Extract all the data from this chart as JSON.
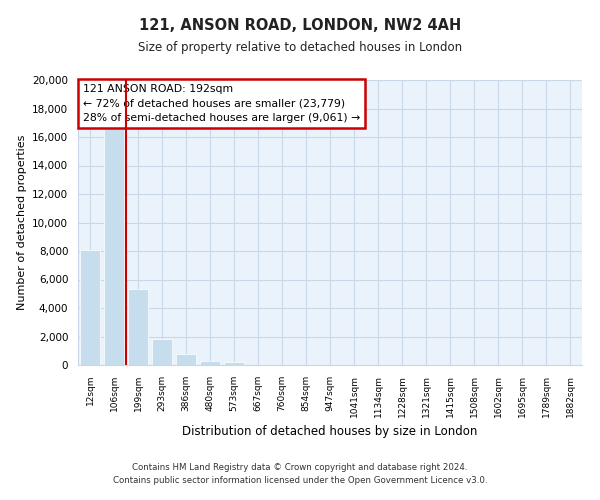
{
  "title": "121, ANSON ROAD, LONDON, NW2 4AH",
  "subtitle": "Size of property relative to detached houses in London",
  "xlabel": "Distribution of detached houses by size in London",
  "ylabel": "Number of detached properties",
  "bar_labels": [
    "12sqm",
    "106sqm",
    "199sqm",
    "293sqm",
    "386sqm",
    "480sqm",
    "573sqm",
    "667sqm",
    "760sqm",
    "854sqm",
    "947sqm",
    "1041sqm",
    "1134sqm",
    "1228sqm",
    "1321sqm",
    "1415sqm",
    "1508sqm",
    "1602sqm",
    "1695sqm",
    "1789sqm",
    "1882sqm"
  ],
  "bar_values": [
    8100,
    16600,
    5300,
    1800,
    800,
    300,
    200,
    0,
    0,
    0,
    0,
    0,
    0,
    0,
    0,
    0,
    0,
    0,
    0,
    0,
    0
  ],
  "ylim": [
    0,
    20000
  ],
  "yticks": [
    0,
    2000,
    4000,
    6000,
    8000,
    10000,
    12000,
    14000,
    16000,
    18000,
    20000
  ],
  "property_line_index": 2,
  "annotation_title": "121 ANSON ROAD: 192sqm",
  "annotation_line1": "← 72% of detached houses are smaller (23,779)",
  "annotation_line2": "28% of semi-detached houses are larger (9,061) →",
  "bar_color": "#c5dded",
  "bar_edge_color": "#ffffff",
  "highlight_line_color": "#cc0000",
  "annotation_box_edge_color": "#cc0000",
  "plot_bg_color": "#eaf3fb",
  "background_color": "#ffffff",
  "grid_color": "#c8d8e8",
  "footer_line1": "Contains HM Land Registry data © Crown copyright and database right 2024.",
  "footer_line2": "Contains public sector information licensed under the Open Government Licence v3.0."
}
